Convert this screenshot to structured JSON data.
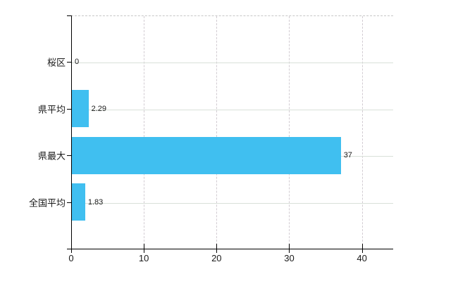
{
  "chart_data": {
    "type": "bar",
    "orientation": "horizontal",
    "title": "",
    "categories": [
      "桜区",
      "県平均",
      "県最大",
      "全国平均"
    ],
    "values": [
      0,
      2.29,
      37,
      1.83
    ],
    "value_labels": [
      "0",
      "2.29",
      "37",
      "1.83"
    ],
    "xtick_labels": [
      "0",
      "10",
      "20",
      "30",
      "40"
    ],
    "xtick_values": [
      0,
      10,
      20,
      30,
      40
    ],
    "xlim": [
      0,
      44.3
    ],
    "grid": true,
    "legend_position": "none",
    "colors": {
      "bar": "#40BFF0",
      "axis": "#000000",
      "gridline_horizontal": "#d9e0d9",
      "gridline_vertical": "#d2ccd2",
      "text": "#1a1a1a",
      "background": "#ffffff"
    }
  }
}
